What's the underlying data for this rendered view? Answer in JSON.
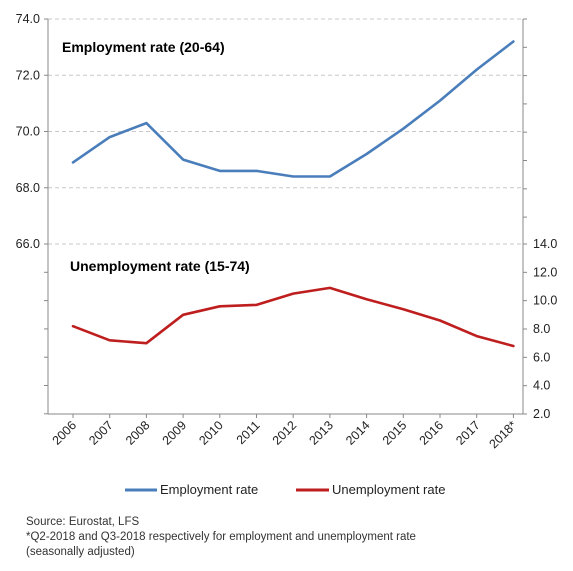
{
  "chart_data": {
    "type": "line",
    "categories": [
      "2006",
      "2007",
      "2008",
      "2009",
      "2010",
      "2011",
      "2012",
      "2013",
      "2014",
      "2015",
      "2016",
      "2017",
      "2018*"
    ],
    "panels": [
      {
        "title": "Employment rate (20-64)",
        "axis": "left",
        "ylim": [
          66.0,
          74.0
        ],
        "ticks": [
          "74.0",
          "72.0",
          "70.0",
          "68.0",
          "66.0"
        ],
        "series": [
          {
            "name": "Employment rate",
            "color": "#4a7ebb",
            "values": [
              68.9,
              69.8,
              70.3,
              69.0,
              68.6,
              68.6,
              68.4,
              68.4,
              69.2,
              70.1,
              71.1,
              72.2,
              73.2
            ]
          }
        ]
      },
      {
        "title": "Unemployment rate (15-74)",
        "axis": "right",
        "ylim": [
          2.0,
          14.0
        ],
        "ticks": [
          "14.0",
          "12.0",
          "10.0",
          "8.0",
          "6.0",
          "4.0",
          "2.0"
        ],
        "series": [
          {
            "name": "Unemployment rate",
            "color": "#be1e1e",
            "values": [
              8.2,
              7.2,
              7.0,
              9.0,
              9.6,
              9.7,
              10.5,
              10.9,
              10.1,
              9.4,
              8.6,
              7.5,
              6.8
            ]
          }
        ]
      }
    ],
    "grid": true,
    "legend": "bottom"
  },
  "legend": {
    "employment": "Employment rate",
    "unemployment": "Unemployment rate"
  },
  "footer": {
    "source": "Source: Eurostat, LFS",
    "note": "*Q2-2018 and Q3-2018 respectively for employment and unemployment rate",
    "note2": "(seasonally adjusted)"
  }
}
